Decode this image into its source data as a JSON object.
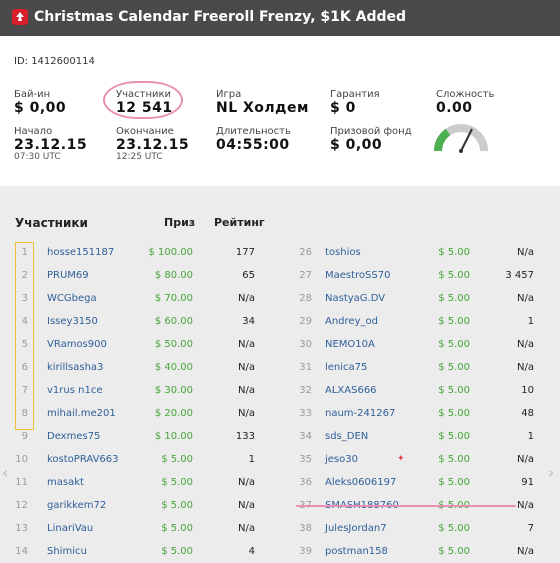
{
  "title": "Christmas Calendar Freeroll Frenzy, $1K Added",
  "id_line": "ID: 1412600114",
  "fields": {
    "buyin_label": "Бай-ин",
    "buyin_value": "$ 0,00",
    "players_label": "Участники",
    "players_value": "12 541",
    "game_label": "Игра",
    "game_value": "NL Холдем",
    "guarantee_label": "Гарантия",
    "guarantee_value": "$ 0",
    "difficulty_label": "Сложность",
    "difficulty_value": "0.00",
    "start_label": "Начало",
    "start_date": "23.12.15",
    "start_time": "07:30 UTC",
    "end_label": "Окончание",
    "end_date": "23.12.15",
    "end_time": "12:25 UTC",
    "duration_label": "Длительность",
    "duration_value": "04:55:00",
    "prizepool_label": "Призовой фонд",
    "prizepool_value": "$ 0,00"
  },
  "gauge_level": 0.0,
  "list_headers": {
    "participants": "Участники",
    "prize": "Приз",
    "rating": "Рейтинг"
  },
  "left_rows": [
    {
      "n": "1",
      "name": "hosse151187",
      "prize": "$ 100.00",
      "rating": "177"
    },
    {
      "n": "2",
      "name": "PRUM69",
      "prize": "$ 80.00",
      "rating": "65"
    },
    {
      "n": "3",
      "name": "WCGbega",
      "prize": "$ 70.00",
      "rating": "N/a"
    },
    {
      "n": "4",
      "name": "Issey3150",
      "prize": "$ 60.00",
      "rating": "34"
    },
    {
      "n": "5",
      "name": "VRamos900",
      "prize": "$ 50.00",
      "rating": "N/a"
    },
    {
      "n": "6",
      "name": "kirillsasha3",
      "prize": "$ 40.00",
      "rating": "N/a"
    },
    {
      "n": "7",
      "name": "v1rus n1ce",
      "prize": "$ 30.00",
      "rating": "N/a"
    },
    {
      "n": "8",
      "name": "mihail.me201",
      "prize": "$ 20.00",
      "rating": "N/a"
    },
    {
      "n": "9",
      "name": "Dexmes75",
      "prize": "$ 10.00",
      "rating": "133"
    },
    {
      "n": "10",
      "name": "kostoPRAV663",
      "prize": "$ 5.00",
      "rating": "1"
    },
    {
      "n": "11",
      "name": "masakt",
      "prize": "$ 5.00",
      "rating": "N/a"
    },
    {
      "n": "12",
      "name": "garikkem72",
      "prize": "$ 5.00",
      "rating": "N/a"
    },
    {
      "n": "13",
      "name": "LinariVau",
      "prize": "$ 5.00",
      "rating": "N/a"
    },
    {
      "n": "14",
      "name": "Shimicu",
      "prize": "$ 5.00",
      "rating": "4"
    }
  ],
  "right_rows": [
    {
      "n": "26",
      "name": "toshios",
      "prize": "$ 5.00",
      "rating": "N/a"
    },
    {
      "n": "27",
      "name": "MaestroSS70",
      "prize": "$ 5.00",
      "rating": "3 457"
    },
    {
      "n": "28",
      "name": "NastyaG.DV",
      "prize": "$ 5.00",
      "rating": "N/a"
    },
    {
      "n": "29",
      "name": "Andrey_od",
      "prize": "$ 5.00",
      "rating": "1"
    },
    {
      "n": "30",
      "name": "NEMO10A",
      "prize": "$ 5.00",
      "rating": "N/a"
    },
    {
      "n": "31",
      "name": "lenica75",
      "prize": "$ 5.00",
      "rating": "N/a"
    },
    {
      "n": "32",
      "name": "ALXAS666",
      "prize": "$ 5.00",
      "rating": "10"
    },
    {
      "n": "33",
      "name": "naum-241267",
      "prize": "$ 5.00",
      "rating": "48"
    },
    {
      "n": "34",
      "name": "sds_DEN",
      "prize": "$ 5.00",
      "rating": "1"
    },
    {
      "n": "35",
      "name": "jeso30",
      "prize": "$ 5.00",
      "rating": "N/a"
    },
    {
      "n": "36",
      "name": "Aleks0606197",
      "prize": "$ 5.00",
      "rating": "91"
    },
    {
      "n": "37",
      "name": "SMASH188760",
      "prize": "$ 5.00",
      "rating": "N/a"
    },
    {
      "n": "38",
      "name": "JulesJordan7",
      "prize": "$ 5.00",
      "rating": "7"
    },
    {
      "n": "39",
      "name": "postman158",
      "prize": "$ 5.00",
      "rating": "N/a"
    }
  ],
  "colors": {
    "titlebar": "#4a4a4a",
    "prize_green": "#47a53a",
    "name_blue": "#2f5f99",
    "highlight_pink": "#e98fb4",
    "top_box": "#f0c040"
  }
}
